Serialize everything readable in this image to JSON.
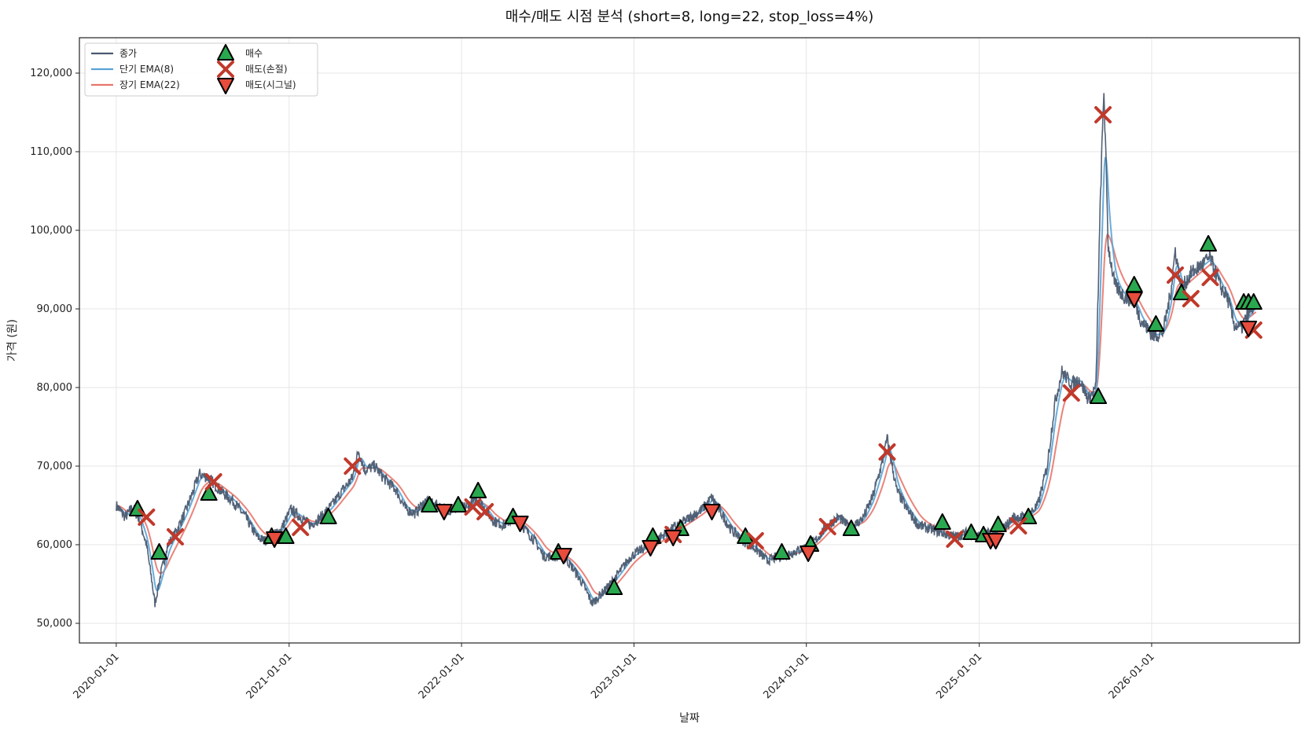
{
  "chart_data": {
    "type": "line",
    "title": "매수/매도 시점 분석 (short=8, long=22, stop_loss=4%)",
    "xlabel": "날짜",
    "ylabel": "가격 (원)",
    "xlim": [
      "2019-10-15",
      "2026-11-10"
    ],
    "ylim": [
      47500,
      124500
    ],
    "x_ticks": [
      "2020-01-01",
      "2021-01-01",
      "2022-01-01",
      "2023-01-01",
      "2024-01-01",
      "2025-01-01",
      "2026-01-01"
    ],
    "y_ticks": [
      50000,
      60000,
      70000,
      80000,
      90000,
      100000,
      110000,
      120000
    ],
    "y_tick_labels": [
      "50,000",
      "60,000",
      "70,000",
      "80,000",
      "90,000",
      "100,000",
      "110,000",
      "120,000"
    ],
    "grid": true,
    "legend_position": "upper-left",
    "colors": {
      "close": "#4a5a70",
      "ema_short": "#5aa3d6",
      "ema_long": "#e8756a",
      "buy": "#2aa84f",
      "sell_stop": "#c0392b",
      "sell_signal": "#e74c3c"
    },
    "price_path": [
      [
        "2020-01-01",
        65000
      ],
      [
        "2020-01-20",
        63500
      ],
      [
        "2020-02-05",
        64800
      ],
      [
        "2020-02-20",
        63000
      ],
      [
        "2020-03-05",
        60000
      ],
      [
        "2020-03-15",
        56000
      ],
      [
        "2020-03-23",
        52500
      ],
      [
        "2020-04-05",
        56500
      ],
      [
        "2020-04-20",
        60000
      ],
      [
        "2020-05-05",
        61500
      ],
      [
        "2020-05-25",
        64000
      ],
      [
        "2020-06-10",
        66500
      ],
      [
        "2020-06-25",
        69000
      ],
      [
        "2020-07-15",
        68500
      ],
      [
        "2020-08-10",
        66800
      ],
      [
        "2020-09-05",
        65500
      ],
      [
        "2020-10-01",
        63500
      ],
      [
        "2020-10-25",
        61000
      ],
      [
        "2020-11-10",
        60500
      ],
      [
        "2020-11-25",
        61000
      ],
      [
        "2020-12-15",
        62000
      ],
      [
        "2021-01-05",
        64500
      ],
      [
        "2021-01-25",
        63500
      ],
      [
        "2021-02-15",
        62500
      ],
      [
        "2021-03-10",
        63500
      ],
      [
        "2021-04-01",
        65000
      ],
      [
        "2021-04-25",
        67000
      ],
      [
        "2021-05-15",
        68500
      ],
      [
        "2021-05-28",
        72000
      ],
      [
        "2021-06-10",
        69500
      ],
      [
        "2021-07-01",
        70000
      ],
      [
        "2021-07-20",
        68500
      ],
      [
        "2021-08-15",
        67000
      ],
      [
        "2021-09-05",
        64500
      ],
      [
        "2021-09-25",
        64000
      ],
      [
        "2021-10-15",
        65500
      ],
      [
        "2021-11-10",
        65000
      ],
      [
        "2021-12-01",
        64500
      ],
      [
        "2021-12-25",
        64500
      ],
      [
        "2022-01-15",
        65000
      ],
      [
        "2022-02-05",
        65800
      ],
      [
        "2022-02-20",
        64500
      ],
      [
        "2022-03-10",
        63000
      ],
      [
        "2022-04-01",
        62500
      ],
      [
        "2022-04-25",
        63500
      ],
      [
        "2022-05-15",
        62000
      ],
      [
        "2022-06-05",
        60500
      ],
      [
        "2022-06-25",
        58500
      ],
      [
        "2022-07-15",
        58500
      ],
      [
        "2022-08-05",
        58500
      ],
      [
        "2022-08-25",
        57000
      ],
      [
        "2022-09-15",
        55000
      ],
      [
        "2022-10-05",
        52500
      ],
      [
        "2022-10-20",
        53500
      ],
      [
        "2022-11-05",
        54500
      ],
      [
        "2022-12-01",
        56500
      ],
      [
        "2022-12-25",
        58500
      ],
      [
        "2023-01-20",
        59500
      ],
      [
        "2023-02-15",
        60500
      ],
      [
        "2023-03-10",
        61500
      ],
      [
        "2023-04-05",
        62500
      ],
      [
        "2023-05-01",
        63500
      ],
      [
        "2023-05-25",
        64500
      ],
      [
        "2023-06-15",
        66000
      ],
      [
        "2023-07-05",
        64000
      ],
      [
        "2023-07-25",
        62000
      ],
      [
        "2023-08-20",
        60500
      ],
      [
        "2023-09-15",
        59500
      ],
      [
        "2023-10-10",
        58000
      ],
      [
        "2023-11-05",
        58500
      ],
      [
        "2023-12-01",
        59000
      ],
      [
        "2023-12-25",
        59500
      ],
      [
        "2024-01-20",
        60500
      ],
      [
        "2024-02-15",
        62500
      ],
      [
        "2024-03-10",
        63500
      ],
      [
        "2024-04-05",
        62000
      ],
      [
        "2024-05-01",
        63500
      ],
      [
        "2024-05-20",
        66000
      ],
      [
        "2024-06-10",
        70500
      ],
      [
        "2024-06-20",
        73500
      ],
      [
        "2024-07-10",
        67000
      ],
      [
        "2024-08-01",
        64500
      ],
      [
        "2024-08-25",
        62500
      ],
      [
        "2024-09-20",
        62000
      ],
      [
        "2024-10-15",
        61500
      ],
      [
        "2024-11-10",
        61000
      ],
      [
        "2024-12-05",
        61500
      ],
      [
        "2025-01-01",
        61000
      ],
      [
        "2025-01-25",
        61500
      ],
      [
        "2025-02-20",
        62000
      ],
      [
        "2025-03-15",
        63500
      ],
      [
        "2025-04-10",
        63500
      ],
      [
        "2025-05-05",
        65000
      ],
      [
        "2025-05-25",
        70000
      ],
      [
        "2025-06-10",
        78000
      ],
      [
        "2025-06-25",
        82000
      ],
      [
        "2025-07-15",
        80500
      ],
      [
        "2025-08-01",
        81000
      ],
      [
        "2025-08-20",
        78500
      ],
      [
        "2025-09-05",
        80000
      ],
      [
        "2025-09-15",
        105000
      ],
      [
        "2025-09-22",
        118000
      ],
      [
        "2025-10-01",
        98000
      ],
      [
        "2025-10-15",
        93000
      ],
      [
        "2025-11-05",
        91500
      ],
      [
        "2025-11-25",
        91000
      ],
      [
        "2025-12-10",
        88500
      ],
      [
        "2026-01-05",
        86500
      ],
      [
        "2026-01-25",
        87000
      ],
      [
        "2026-02-10",
        92000
      ],
      [
        "2026-02-20",
        97500
      ],
      [
        "2026-03-05",
        92500
      ],
      [
        "2026-03-25",
        94500
      ],
      [
        "2026-04-15",
        95500
      ],
      [
        "2026-05-05",
        96500
      ],
      [
        "2026-05-25",
        93000
      ],
      [
        "2026-06-10",
        91500
      ],
      [
        "2026-06-25",
        88000
      ],
      [
        "2026-07-10",
        87500
      ],
      [
        "2026-07-25",
        89500
      ],
      [
        "2026-08-10",
        90500
      ]
    ],
    "series": [
      {
        "name": "종가",
        "key": "close",
        "smoothing": 0,
        "noise": 1
      },
      {
        "name": "단기 EMA(8)",
        "key": "ema_short",
        "smoothing": 8,
        "noise": 0
      },
      {
        "name": "장기 EMA(22)",
        "key": "ema_long",
        "smoothing": 22,
        "noise": 0
      }
    ],
    "markers": [
      {
        "name": "매수",
        "shape": "triangle-up",
        "color_key": "buy",
        "points": [
          [
            "2020-02-15",
            64500
          ],
          [
            "2020-04-01",
            59000
          ],
          [
            "2020-07-15",
            66500
          ],
          [
            "2020-11-25",
            61000
          ],
          [
            "2020-12-25",
            61000
          ],
          [
            "2021-03-25",
            63500
          ],
          [
            "2021-10-25",
            65000
          ],
          [
            "2021-12-25",
            65000
          ],
          [
            "2022-02-05",
            66800
          ],
          [
            "2022-04-20",
            63500
          ],
          [
            "2022-07-25",
            59000
          ],
          [
            "2022-11-20",
            54500
          ],
          [
            "2023-02-10",
            61000
          ],
          [
            "2023-04-10",
            62000
          ],
          [
            "2023-08-25",
            61000
          ],
          [
            "2023-11-10",
            59000
          ],
          [
            "2024-01-10",
            60000
          ],
          [
            "2024-04-05",
            62000
          ],
          [
            "2024-10-15",
            62800
          ],
          [
            "2024-12-15",
            61500
          ],
          [
            "2025-01-10",
            61200
          ],
          [
            "2025-02-10",
            62500
          ],
          [
            "2025-04-15",
            63500
          ],
          [
            "2025-09-10",
            78800
          ],
          [
            "2025-11-25",
            93000
          ],
          [
            "2026-01-10",
            88000
          ],
          [
            "2026-03-05",
            92000
          ],
          [
            "2026-05-01",
            98200
          ],
          [
            "2026-07-15",
            90800
          ],
          [
            "2026-07-25",
            90800
          ],
          [
            "2026-08-05",
            90800
          ]
        ]
      },
      {
        "name": "매도(손절)",
        "shape": "x",
        "color_key": "sell_stop",
        "points": [
          [
            "2020-03-05",
            63500
          ],
          [
            "2020-05-05",
            61000
          ],
          [
            "2020-07-25",
            68000
          ],
          [
            "2021-01-25",
            62200
          ],
          [
            "2021-05-15",
            70000
          ],
          [
            "2022-01-25",
            64800
          ],
          [
            "2022-02-20",
            64200
          ],
          [
            "2023-03-25",
            61300
          ],
          [
            "2023-09-15",
            60500
          ],
          [
            "2024-02-15",
            62300
          ],
          [
            "2024-06-20",
            71800
          ],
          [
            "2024-11-10",
            60700
          ],
          [
            "2025-03-25",
            62400
          ],
          [
            "2025-07-15",
            79300
          ],
          [
            "2025-09-20",
            114700
          ],
          [
            "2026-02-20",
            94300
          ],
          [
            "2026-03-25",
            91300
          ],
          [
            "2026-05-05",
            94000
          ],
          [
            "2026-08-05",
            87300
          ]
        ]
      },
      {
        "name": "매도(시그널)",
        "shape": "triangle-down",
        "color_key": "sell_signal",
        "points": [
          [
            "2020-12-01",
            60800
          ],
          [
            "2021-11-25",
            64300
          ],
          [
            "2022-05-05",
            62800
          ],
          [
            "2022-08-05",
            58700
          ],
          [
            "2023-02-05",
            59700
          ],
          [
            "2023-03-25",
            61000
          ],
          [
            "2023-06-15",
            64300
          ],
          [
            "2024-01-05",
            59000
          ],
          [
            "2025-01-25",
            60600
          ],
          [
            "2025-02-05",
            60600
          ],
          [
            "2025-11-25",
            91300
          ],
          [
            "2026-07-25",
            87600
          ]
        ]
      }
    ]
  }
}
